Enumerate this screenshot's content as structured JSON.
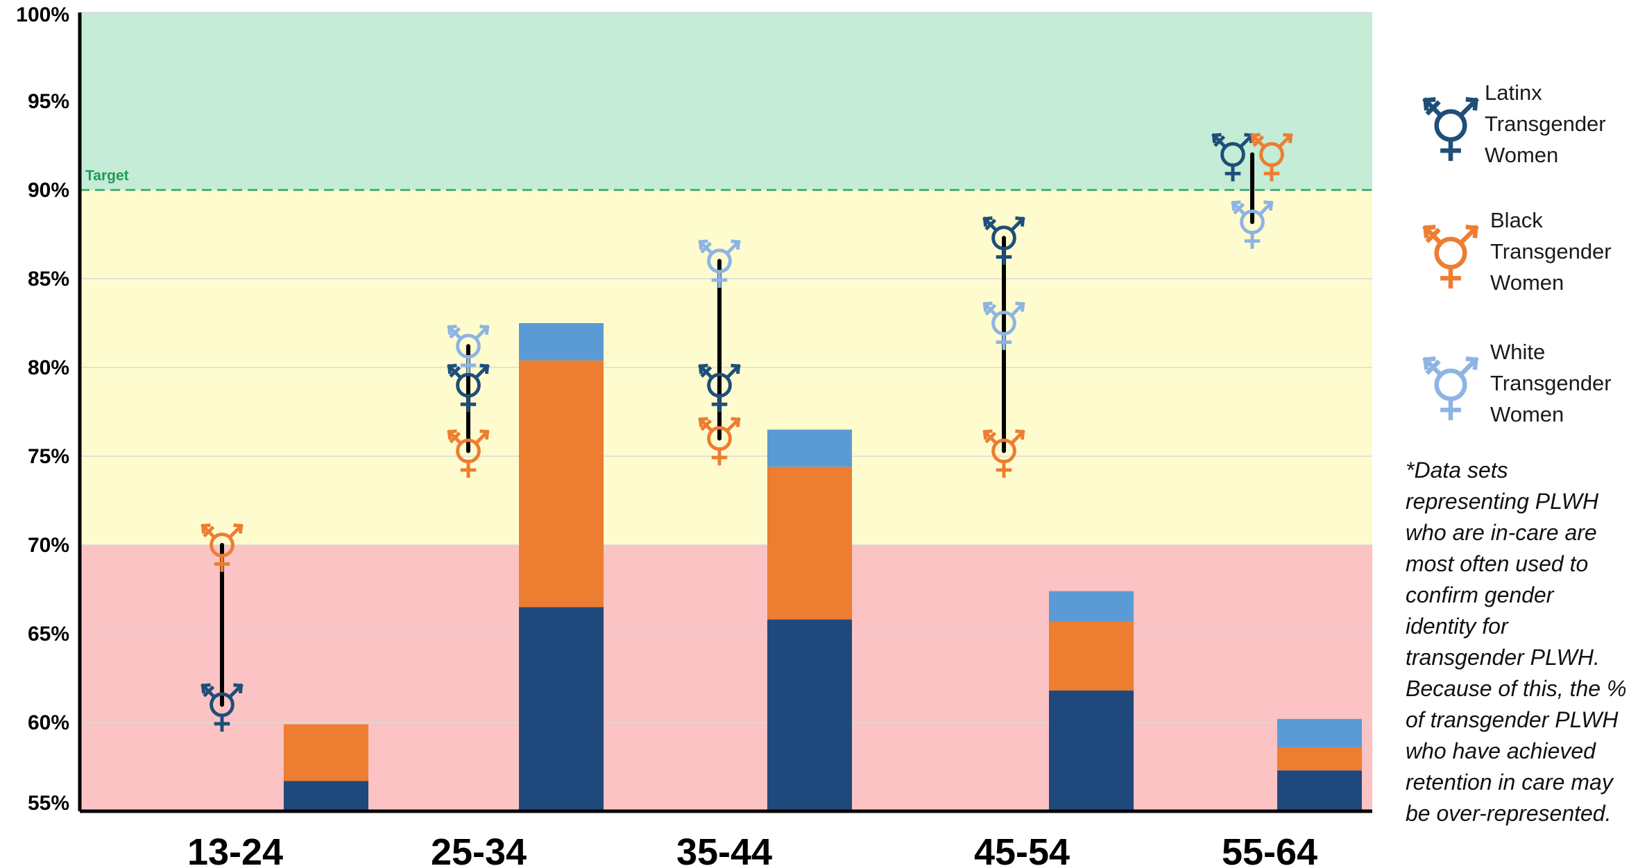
{
  "chart_data": {
    "type": "bar",
    "categories": [
      "13-24",
      "25-34",
      "35-44",
      "45-54",
      "55-64"
    ],
    "ylim": [
      55,
      100
    ],
    "y_ticks": [
      "55%",
      "60%",
      "65%",
      "70%",
      "75%",
      "80%",
      "85%",
      "90%",
      "95%",
      "100%"
    ],
    "target": {
      "label": "Target",
      "value": 90
    },
    "bands": [
      {
        "from": 55,
        "to": 70,
        "color": "#fbc3c3"
      },
      {
        "from": 70,
        "to": 90,
        "color": "#fefccf"
      },
      {
        "from": 90,
        "to": 100,
        "color": "#c4ecd6"
      }
    ],
    "stacked_bars": {
      "categories": [
        "13-24",
        "25-34",
        "35-44",
        "45-54",
        "55-64"
      ],
      "segments": [
        {
          "color": "#1f497d",
          "values": [
            56.7,
            66.5,
            65.8,
            61.8,
            57.3
          ]
        },
        {
          "color": "#ed7d31",
          "values": [
            59.9,
            80.4,
            74.4,
            65.7,
            58.6
          ]
        },
        {
          "color": "#5b9bd5",
          "values": [
            59.9,
            82.5,
            76.5,
            67.4,
            60.2
          ]
        }
      ]
    },
    "series": [
      {
        "name": "Latinx Transgender Women",
        "color": "#1f4e79",
        "values": [
          61,
          79,
          79,
          87.3,
          92
        ]
      },
      {
        "name": "Black Transgender Women",
        "color": "#ed7d31",
        "values": [
          70,
          75.3,
          76,
          75.3,
          92
        ]
      },
      {
        "name": "White Transgender Women",
        "color": "#8eb4e3",
        "values": [
          null,
          81.2,
          86,
          82.5,
          88.2
        ]
      }
    ],
    "legend_position": "right"
  },
  "legend": [
    {
      "lines": [
        "Latinx",
        "Transgender",
        "Women"
      ],
      "color": "#1f4e79",
      "icon": "transgender-symbol-icon"
    },
    {
      "lines": [
        "Black",
        "Transgender",
        "Women"
      ],
      "color": "#ed7d31",
      "icon": "transgender-symbol-icon"
    },
    {
      "lines": [
        "White",
        "Transgender",
        "Women"
      ],
      "color": "#8eb4e3",
      "icon": "transgender-symbol-icon"
    }
  ],
  "note_lines": [
    "*Data sets",
    "representing PLWH",
    "who are in-care are",
    "most often used to",
    "confirm gender",
    "identity for",
    "transgender PLWH.",
    "Because of this, the %",
    "of transgender PLWH",
    "who have achieved",
    "retention in care may",
    "be over-represented."
  ]
}
